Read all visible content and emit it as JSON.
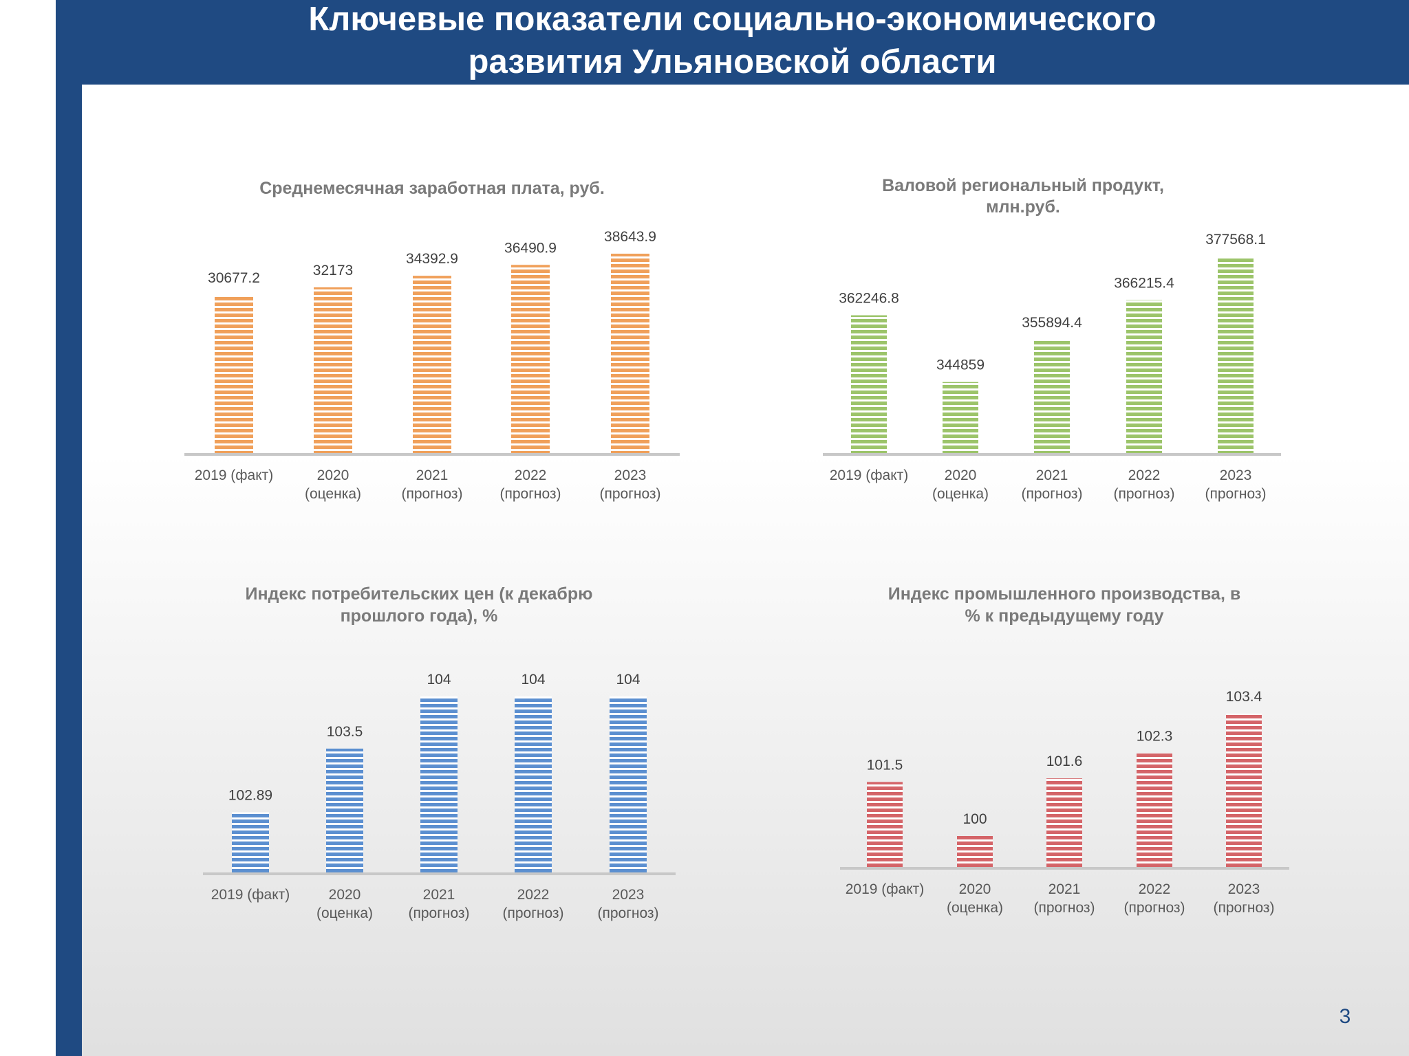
{
  "page": {
    "title_line1": "Ключевые показатели социально-экономического",
    "title_line2": "развития Ульяновской области",
    "page_number": "3"
  },
  "chart_data": [
    {
      "type": "bar",
      "title": [
        "Среднемесячная заработная плата, руб."
      ],
      "categories": [
        [
          "2019 (факт)"
        ],
        [
          "2020",
          "(оценка)"
        ],
        [
          "2021",
          "(прогноз)"
        ],
        [
          "2022",
          "(прогноз)"
        ],
        [
          "2023",
          "(прогноз)"
        ]
      ],
      "values": [
        30677.2,
        32173,
        34392.9,
        36490.9,
        38643.9
      ],
      "value_labels": [
        "30677.2",
        "32173",
        "34392.9",
        "36490.9",
        "38643.9"
      ],
      "color": "#f0a05a",
      "ylim": [
        0,
        38643.9
      ]
    },
    {
      "type": "bar",
      "title": [
        "Валовой региональный продукт,",
        "млн.руб."
      ],
      "categories": [
        [
          "2019 (факт)"
        ],
        [
          "2020",
          "(оценка)"
        ],
        [
          "2021",
          "(прогноз)"
        ],
        [
          "2022",
          "(прогноз)"
        ],
        [
          "2023",
          "(прогноз)"
        ]
      ],
      "values": [
        362246.8,
        344859,
        355894.4,
        366215.4,
        377568.1
      ],
      "value_labels": [
        "362246.8",
        "344859",
        "355894.4",
        "366215.4",
        "377568.1"
      ],
      "color": "#9cc46a",
      "ylim": [
        326000,
        377568.1
      ]
    },
    {
      "type": "bar",
      "title": [
        "Индекс потребительских цен (к декабрю",
        "прошлого года), %"
      ],
      "categories": [
        [
          "2019 (факт)"
        ],
        [
          "2020",
          "(оценка)"
        ],
        [
          "2021",
          "(прогноз)"
        ],
        [
          "2022",
          "(прогноз)"
        ],
        [
          "2023",
          "(прогноз)"
        ]
      ],
      "values": [
        102.89,
        103.5,
        104,
        104,
        104
      ],
      "value_labels": [
        "102.89",
        "103.5",
        "104",
        "104",
        "104"
      ],
      "color": "#5b8fd0",
      "ylim": [
        102.3,
        104
      ]
    },
    {
      "type": "bar",
      "title": [
        "Индекс промышленного производства, в",
        "% к предыдущему году"
      ],
      "categories": [
        [
          "2019 (факт)"
        ],
        [
          "2020",
          "(оценка)"
        ],
        [
          "2021",
          "(прогноз)"
        ],
        [
          "2022",
          "(прогноз)"
        ],
        [
          "2023",
          "(прогноз)"
        ]
      ],
      "values": [
        101.5,
        100,
        101.6,
        102.3,
        103.4
      ],
      "value_labels": [
        "101.5",
        "100",
        "101.6",
        "102.3",
        "103.4"
      ],
      "color": "#d46468",
      "ylim": [
        99.1,
        103.4
      ]
    }
  ]
}
